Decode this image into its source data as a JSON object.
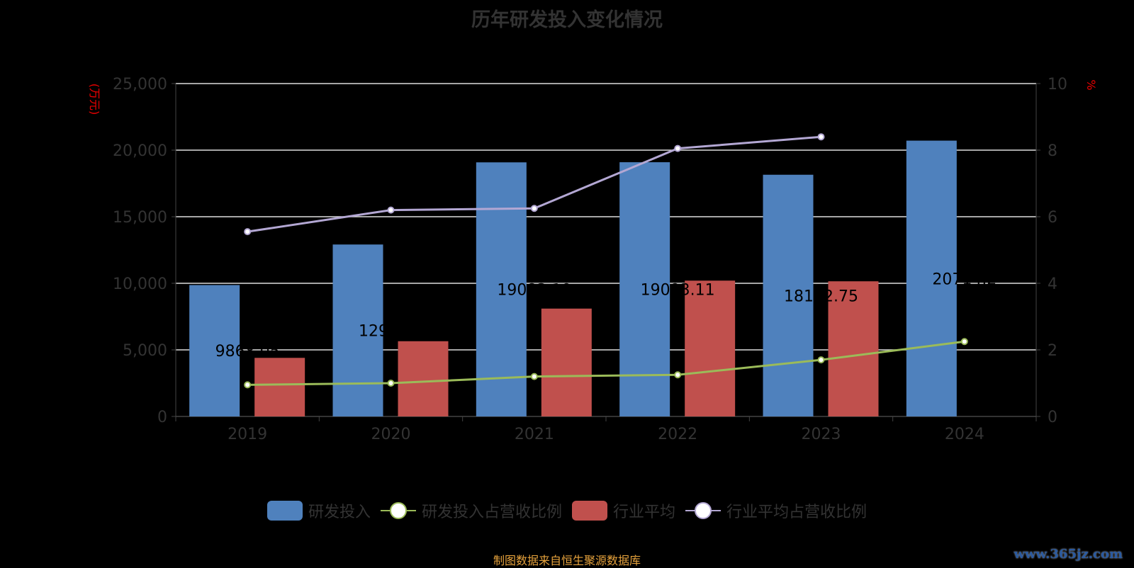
{
  "chart_data": {
    "type": "bar",
    "title": "历年研发投入变化情况",
    "categories": [
      "2019",
      "2020",
      "2021",
      "2022",
      "2023",
      "2024"
    ],
    "ylabel_left": "(万元)",
    "ylabel_right": "%",
    "ylim_left": [
      0,
      25000
    ],
    "ylim_right": [
      0,
      10
    ],
    "yticks_left": [
      "0",
      "5,000",
      "10,000",
      "15,000",
      "20,000",
      "25,000"
    ],
    "yticks_right": [
      "0",
      "2",
      "4",
      "6",
      "8",
      "10"
    ],
    "series": [
      {
        "name": "研发投入",
        "type": "bar",
        "axis": "left",
        "color": "#4f81bd",
        "values": [
          9868.05,
          12912.5,
          19083.1,
          19093.11,
          18152.75,
          20714.2
        ],
        "labels": [
          "9868.05",
          "12912.5",
          "19083.10",
          "19093.11",
          "18152.75",
          "20714.2"
        ]
      },
      {
        "name": "研发投入占营收比例",
        "type": "line",
        "axis": "right",
        "color": "#9bbb59",
        "values": [
          0.95,
          1.0,
          1.2,
          1.25,
          1.7,
          2.25
        ]
      },
      {
        "name": "行业平均",
        "type": "bar",
        "axis": "left",
        "color": "#c0504d",
        "values": [
          4400,
          5650,
          8100,
          10200,
          10150,
          null
        ]
      },
      {
        "name": "行业平均占营收比例",
        "type": "line",
        "axis": "right",
        "color": "#b3a7d3",
        "values": [
          5.55,
          6.2,
          6.25,
          8.05,
          8.4,
          null
        ]
      }
    ],
    "legend": "bottom",
    "grid": true
  },
  "source": "制图数据来自恒生聚源数据库",
  "watermark": "www.365jz.com"
}
